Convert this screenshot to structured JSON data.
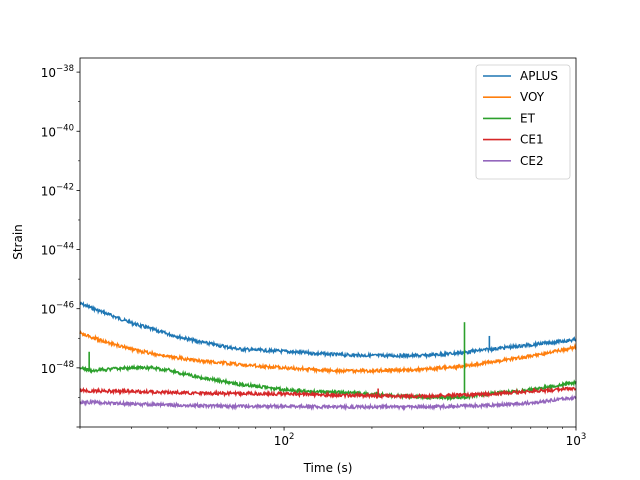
{
  "chart_data": {
    "type": "line",
    "xlabel": "Time (s)",
    "ylabel": "Strain",
    "xscale": "log",
    "yscale": "log",
    "xlim": [
      20,
      1000
    ],
    "ylim": [
      1e-50,
      3e-38
    ],
    "x_ticks": [
      {
        "value": 100,
        "base": "10",
        "exp": "2"
      },
      {
        "value": 1000,
        "base": "10",
        "exp": "3"
      }
    ],
    "y_ticks": [
      {
        "value": 1e-48,
        "base": "10",
        "exp": "−48"
      },
      {
        "value": 1e-46,
        "base": "10",
        "exp": "−46"
      },
      {
        "value": 1e-44,
        "base": "10",
        "exp": "−44"
      },
      {
        "value": 1e-42,
        "base": "10",
        "exp": "−42"
      },
      {
        "value": 1e-40,
        "base": "10",
        "exp": "−40"
      },
      {
        "value": 1e-38,
        "base": "10",
        "exp": "−38"
      }
    ],
    "grid": false,
    "legend_position": "top-right",
    "series": [
      {
        "name": "APLUS",
        "color": "#1f77b4",
        "x": [
          20,
          25,
          30,
          40,
          50,
          70,
          100,
          150,
          200,
          300,
          400,
          500,
          700,
          1000
        ],
        "y": [
          1.5e-46,
          6.5e-47,
          3.3e-47,
          1.4e-47,
          8e-48,
          4.3e-48,
          3.6e-48,
          2.8e-48,
          2.6e-48,
          2.6e-48,
          3.2e-48,
          4.2e-48,
          6e-48,
          9e-48
        ],
        "spikes": [
          {
            "x": 505,
            "y": 1.2e-47
          }
        ]
      },
      {
        "name": "VOY",
        "color": "#ff7f0e",
        "x": [
          20,
          25,
          30,
          40,
          50,
          70,
          100,
          150,
          200,
          300,
          400,
          500,
          700,
          1000
        ],
        "y": [
          1.5e-47,
          7e-48,
          4.3e-48,
          2.4e-48,
          1.8e-48,
          1.3e-48,
          1e-48,
          8e-49,
          8e-49,
          9e-49,
          1.1e-48,
          1.5e-48,
          2.5e-48,
          5e-48
        ]
      },
      {
        "name": "ET",
        "color": "#2ca02c",
        "x": [
          20,
          22,
          25,
          30,
          35,
          40,
          50,
          70,
          100,
          150,
          200,
          300,
          400,
          500,
          700,
          1000
        ],
        "y": [
          1e-48,
          8e-49,
          9e-49,
          1e-48,
          1e-48,
          8.5e-49,
          5e-49,
          2.8e-49,
          1.8e-49,
          1.5e-49,
          1.3e-49,
          1e-49,
          1e-49,
          1.3e-49,
          1.8e-49,
          3.2e-49
        ],
        "spikes": [
          {
            "x": 21.5,
            "y": 3.5e-48
          },
          {
            "x": 415,
            "y": 3.5e-47
          }
        ]
      },
      {
        "name": "CE1",
        "color": "#d62728",
        "x": [
          20,
          30,
          50,
          70,
          100,
          150,
          200,
          300,
          400,
          500,
          700,
          1000
        ],
        "y": [
          1.7e-49,
          1.6e-49,
          1.4e-49,
          1.35e-49,
          1.3e-49,
          1.2e-49,
          1.15e-49,
          1.1e-49,
          1.2e-49,
          1.3e-49,
          1.6e-49,
          2e-49
        ],
        "spikes": [
          {
            "x": 210,
            "y": 2e-49
          }
        ]
      },
      {
        "name": "CE2",
        "color": "#9467bd",
        "x": [
          20,
          30,
          50,
          70,
          100,
          150,
          200,
          300,
          400,
          500,
          700,
          1000
        ],
        "y": [
          7e-50,
          6e-50,
          5.3e-50,
          5e-50,
          5e-50,
          4.8e-50,
          4.8e-50,
          4.8e-50,
          5e-50,
          5.4e-50,
          6.5e-50,
          1e-49
        ]
      }
    ]
  }
}
